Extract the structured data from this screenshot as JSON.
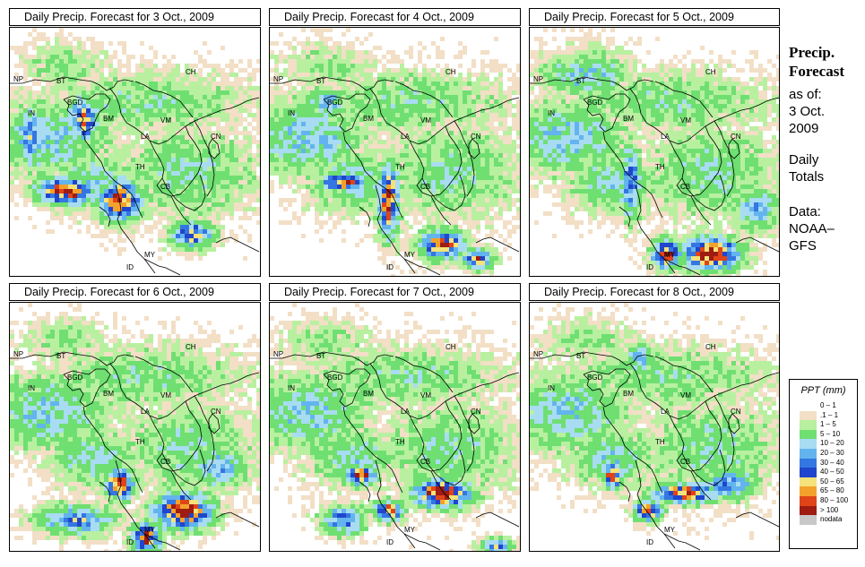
{
  "panels": [
    {
      "title": "Daily Precip. Forecast for  3 Oct., 2009",
      "day": 3
    },
    {
      "title": "Daily Precip. Forecast for  4 Oct., 2009",
      "day": 4
    },
    {
      "title": "Daily Precip. Forecast for  5 Oct., 2009",
      "day": 5
    },
    {
      "title": "Daily Precip. Forecast for  6 Oct., 2009",
      "day": 6
    },
    {
      "title": "Daily Precip. Forecast for  7 Oct., 2009",
      "day": 7
    },
    {
      "title": "Daily Precip. Forecast for  8 Oct., 2009",
      "day": 8
    }
  ],
  "country_labels": [
    "NP",
    "BT",
    "BGD",
    "IN",
    "BM",
    "CH",
    "VM",
    "LA",
    "TH",
    "CB",
    "MY",
    "ID",
    "CN"
  ],
  "sidebar": {
    "heading_line1": "Precip.",
    "heading_line2": "Forecast",
    "asof_label": "as of:",
    "date_line1": "3 Oct.",
    "date_line2": "2009",
    "daily_line1": "Daily",
    "daily_line2": "Totals",
    "data_line1": "Data:",
    "data_line2": "NOAA–",
    "data_line3": "GFS"
  },
  "legend": {
    "title": "PPT (mm)",
    "items": [
      {
        "label": "0 – 1",
        "color": "#ffffff"
      },
      {
        "label": ".1 – 1",
        "color": "#f2dfc6"
      },
      {
        "label": "1 – 5",
        "color": "#b8f0a0"
      },
      {
        "label": "5 – 10",
        "color": "#6fdf72"
      },
      {
        "label": "10 – 20",
        "color": "#a8dcf2"
      },
      {
        "label": "20 – 30",
        "color": "#63b4ee"
      },
      {
        "label": "30 – 40",
        "color": "#3476e2"
      },
      {
        "label": "40 – 50",
        "color": "#1f46cc"
      },
      {
        "label": "50 – 65",
        "color": "#f4e27a"
      },
      {
        "label": "65 – 80",
        "color": "#f4a12c"
      },
      {
        "label": "80 – 100",
        "color": "#e04418"
      },
      {
        "label": "> 100",
        "color": "#9e1c12"
      },
      {
        "label": "nodata",
        "color": "#c8c8c8"
      }
    ]
  }
}
